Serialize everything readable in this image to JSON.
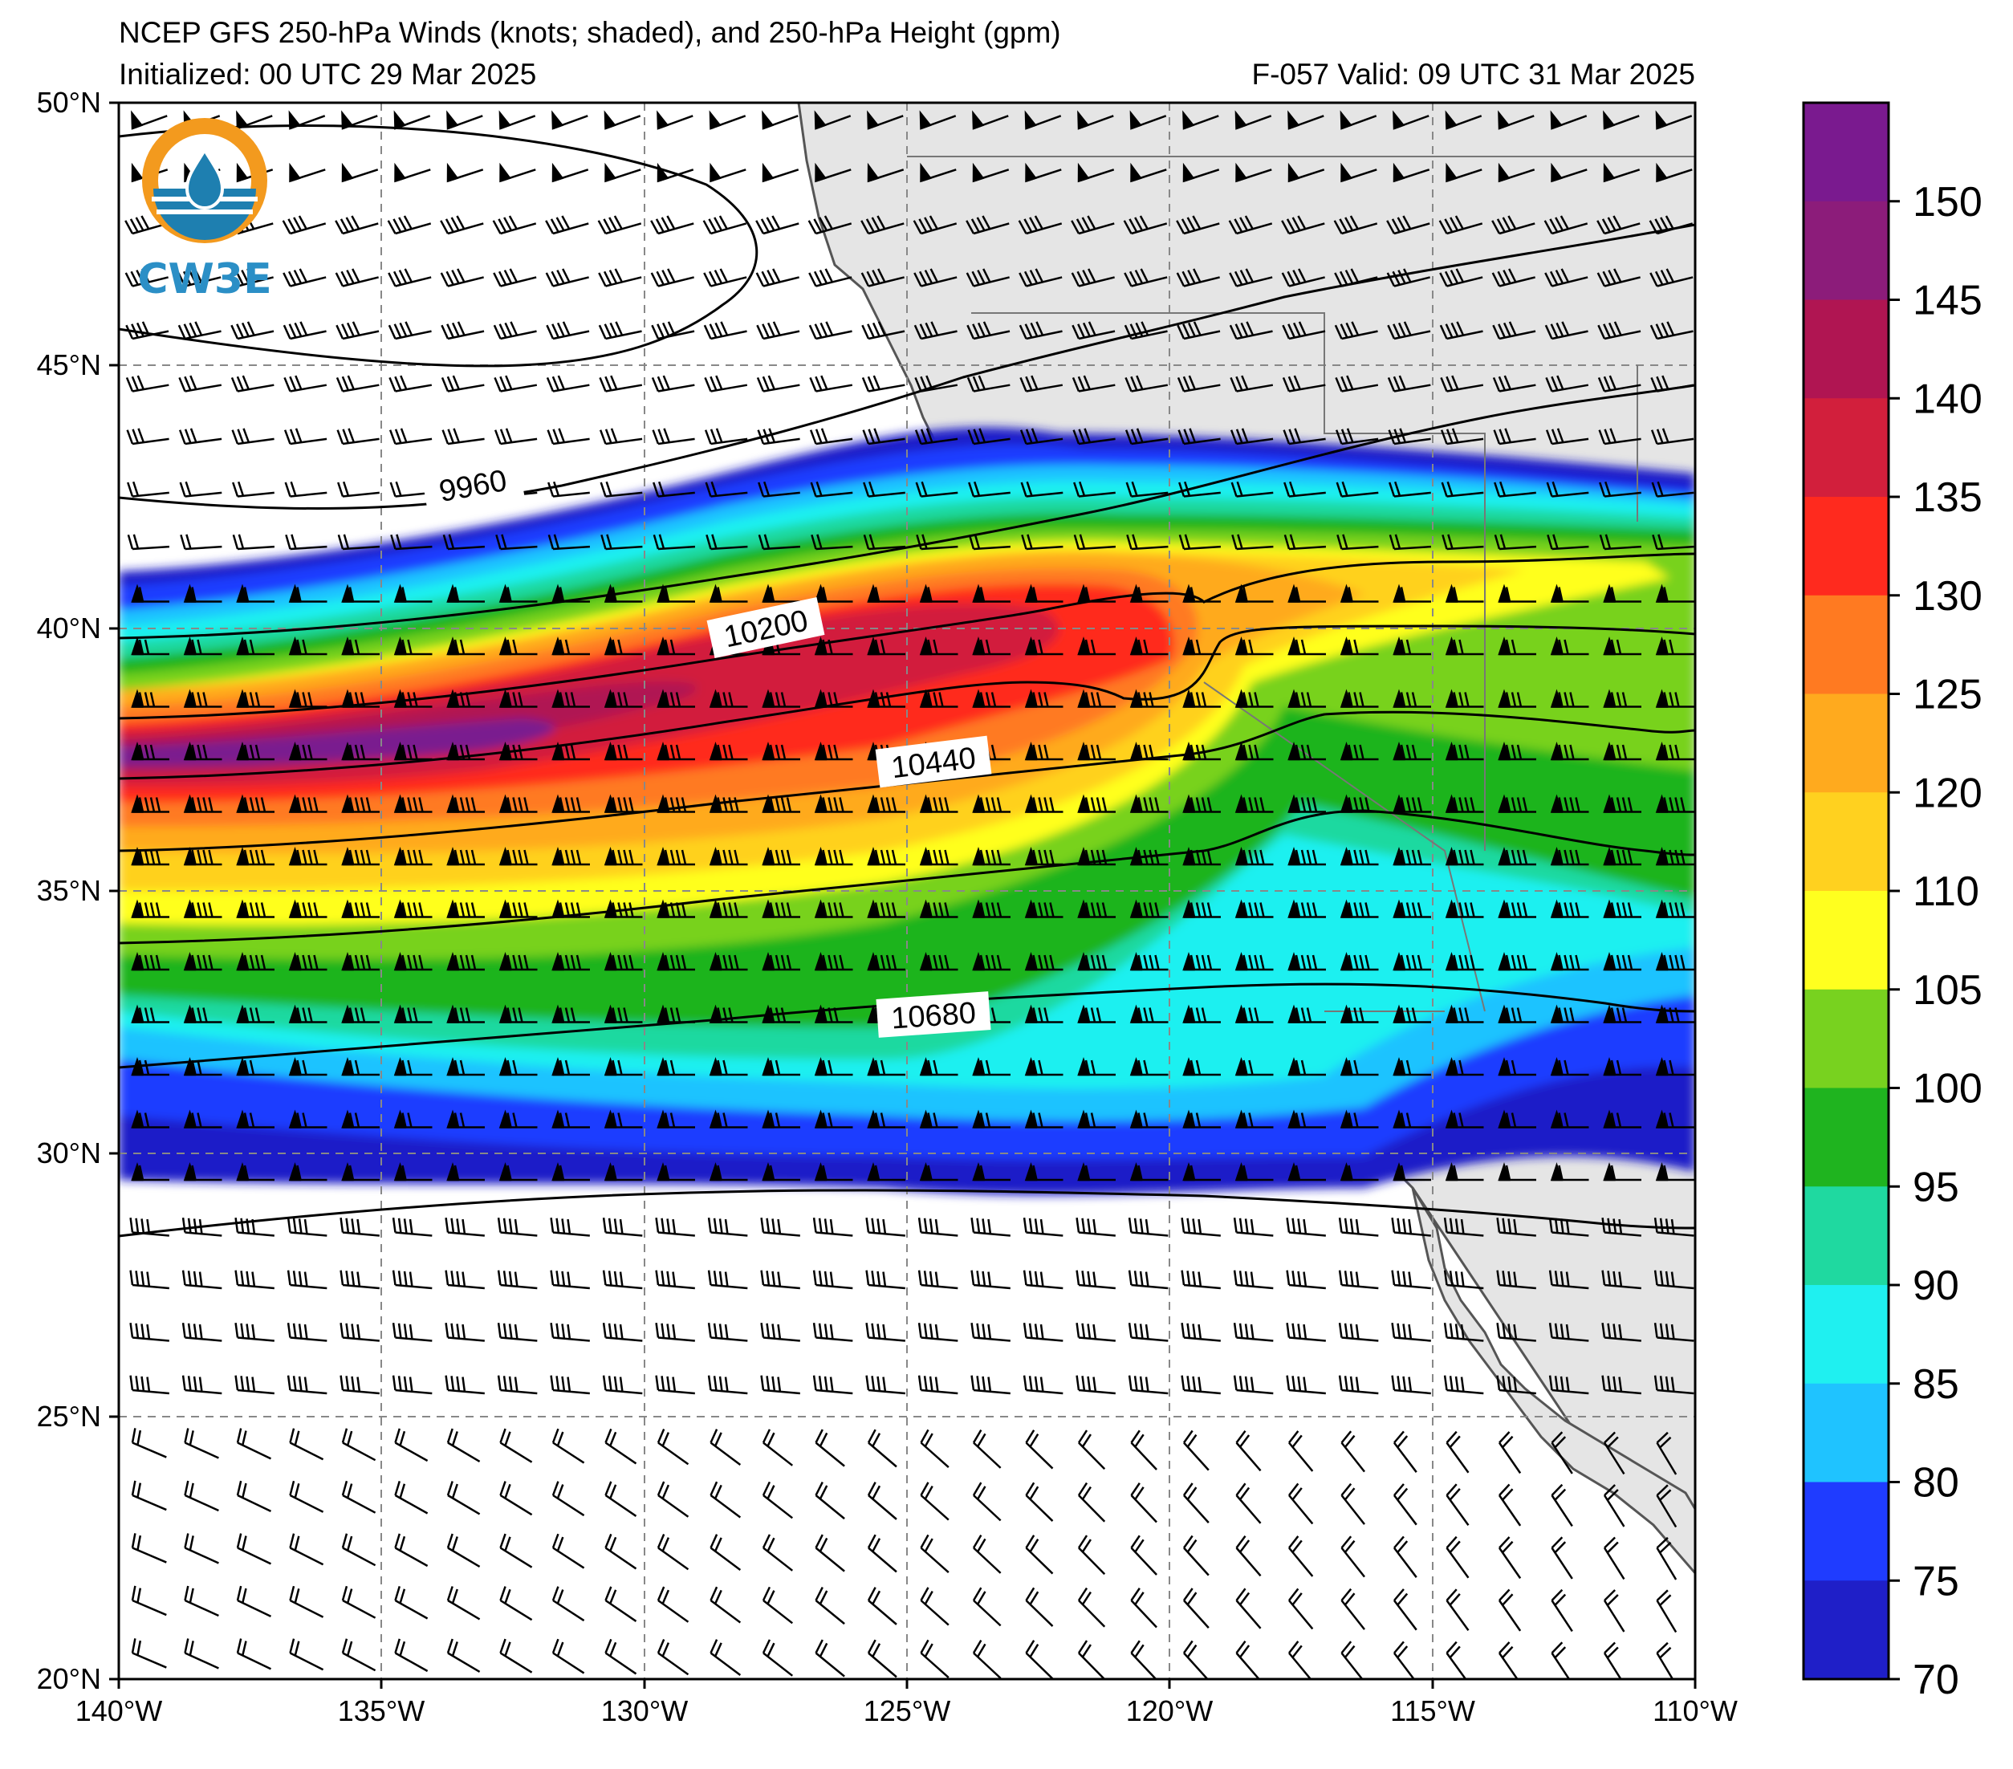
{
  "title": {
    "line1": "NCEP GFS 250-hPa Winds (knots; shaded), and 250-hPa Height (gpm)",
    "line2_left": "Initialized: 00 UTC 29 Mar 2025",
    "line2_right": "F-057  Valid: 09 UTC 31 Mar 2025"
  },
  "logo": {
    "text": "CW3E",
    "icon": "cw3e-water-drop-logo"
  },
  "map": {
    "region": "Northeast Pacific / US West Coast",
    "lon_range": [
      -140,
      -110
    ],
    "lat_range": [
      20,
      50
    ],
    "grid": true,
    "land_color": "#e5e5e5",
    "ocean_color": "#ffffff"
  },
  "axes": {
    "x_ticks": [
      "140°W",
      "135°W",
      "130°W",
      "125°W",
      "120°W",
      "115°W",
      "110°W"
    ],
    "y_ticks": [
      "50°N",
      "45°N",
      "40°N",
      "35°N",
      "30°N",
      "25°N",
      "20°N"
    ]
  },
  "height_contours": {
    "units": "gpm",
    "labels": [
      "9960",
      "10200",
      "10440",
      "10680"
    ]
  },
  "colorbar": {
    "units": "knots",
    "ticks": [
      "150",
      "145",
      "140",
      "135",
      "130",
      "125",
      "120",
      "110",
      "105",
      "100",
      "95",
      "90",
      "85",
      "80",
      "75",
      "70"
    ],
    "colors": [
      "#7a1a8f",
      "#8c1c7a",
      "#b01552",
      "#d21f3c",
      "#ff2a1e",
      "#ff7a21",
      "#ffaa1e",
      "#ffd11f",
      "#ffff1f",
      "#78d21f",
      "#1fb41f",
      "#1fd9a0",
      "#1ff0f0",
      "#1fc3ff",
      "#1f3cff",
      "#1f1fc8"
    ]
  },
  "jet_core": {
    "max_speed_kt_approx": 150,
    "location": "west of 132W near 37-38N"
  }
}
